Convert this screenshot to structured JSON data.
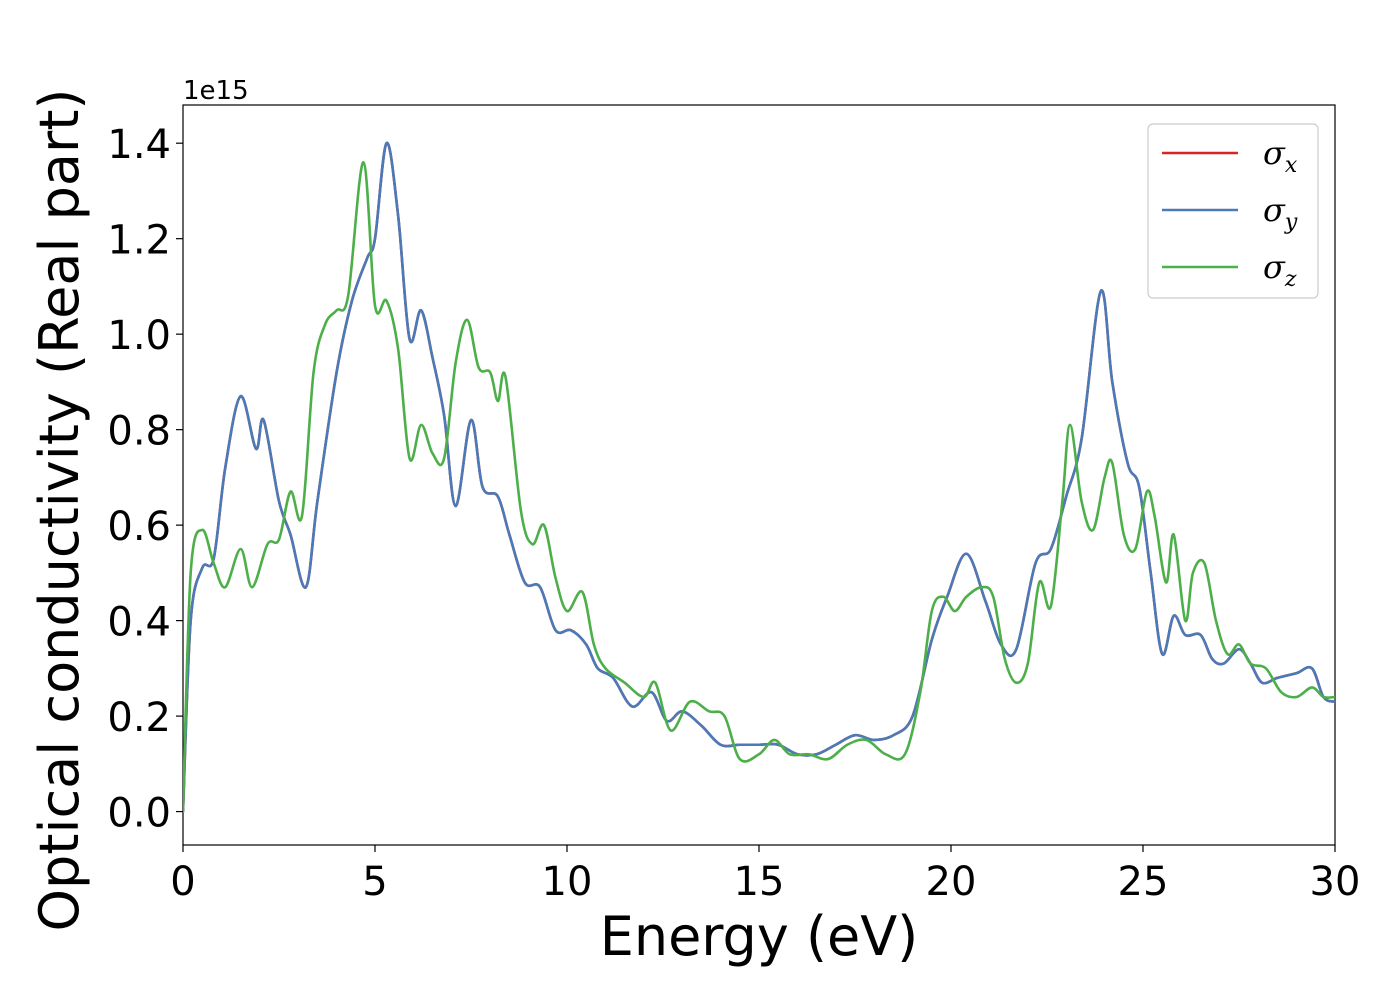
{
  "chart_data": {
    "type": "line",
    "xlabel": "Energy (eV)",
    "ylabel": "Optical conductivity (Real part)",
    "y_offset_text": "1e15",
    "xlim": [
      0,
      30
    ],
    "ylim": [
      -0.07,
      1.48
    ],
    "y_scale_factor": 1000000000000000.0,
    "x_ticks": [
      0,
      5,
      10,
      15,
      20,
      25,
      30
    ],
    "x_tick_labels": [
      "0",
      "5",
      "10",
      "15",
      "20",
      "25",
      "30"
    ],
    "y_ticks": [
      0.0,
      0.2,
      0.4,
      0.6,
      0.8,
      1.0,
      1.2,
      1.4
    ],
    "y_tick_labels": [
      "0.0",
      "0.2",
      "0.4",
      "0.6",
      "0.8",
      "1.0",
      "1.2",
      "1.4"
    ],
    "grid": false,
    "legend_position": "top-right",
    "series": [
      {
        "name": "σx",
        "symbol": "σ",
        "subscript": "x",
        "color": "#d62728",
        "x": [
          0,
          0.2,
          0.5,
          0.8,
          1.1,
          1.5,
          1.9,
          2.1,
          2.5,
          2.8,
          3.2,
          3.5,
          4.0,
          4.4,
          4.8,
          5.0,
          5.3,
          5.6,
          5.9,
          6.2,
          6.5,
          6.8,
          7.1,
          7.5,
          7.8,
          8.2,
          8.5,
          8.9,
          9.3,
          9.7,
          10.1,
          10.5,
          10.8,
          11.2,
          11.7,
          12.2,
          12.6,
          13.0,
          13.5,
          14.0,
          14.5,
          15.0,
          15.5,
          16.0,
          16.5,
          17.0,
          17.5,
          18.0,
          18.5,
          19.0,
          19.5,
          19.9,
          20.4,
          20.9,
          21.3,
          21.7,
          22.2,
          22.6,
          23.0,
          23.4,
          23.9,
          24.2,
          24.6,
          24.9,
          25.2,
          25.5,
          25.8,
          26.1,
          26.5,
          26.8,
          27.1,
          27.5,
          27.8,
          28.1,
          28.5,
          29.0,
          29.4,
          29.7,
          30.0
        ],
        "y": [
          0.0,
          0.4,
          0.51,
          0.53,
          0.72,
          0.87,
          0.76,
          0.82,
          0.65,
          0.58,
          0.47,
          0.65,
          0.92,
          1.07,
          1.16,
          1.2,
          1.4,
          1.25,
          0.99,
          1.05,
          0.95,
          0.83,
          0.64,
          0.82,
          0.68,
          0.66,
          0.58,
          0.48,
          0.47,
          0.38,
          0.38,
          0.35,
          0.3,
          0.28,
          0.22,
          0.25,
          0.19,
          0.21,
          0.18,
          0.14,
          0.14,
          0.14,
          0.14,
          0.12,
          0.12,
          0.14,
          0.16,
          0.15,
          0.16,
          0.2,
          0.36,
          0.45,
          0.54,
          0.44,
          0.35,
          0.34,
          0.52,
          0.55,
          0.66,
          0.78,
          1.09,
          0.9,
          0.73,
          0.68,
          0.5,
          0.33,
          0.41,
          0.37,
          0.37,
          0.32,
          0.31,
          0.34,
          0.31,
          0.27,
          0.28,
          0.29,
          0.3,
          0.24,
          0.23
        ]
      },
      {
        "name": "σy",
        "symbol": "σ",
        "subscript": "y",
        "color": "#4a7ab8",
        "x": [
          0,
          0.2,
          0.5,
          0.8,
          1.1,
          1.5,
          1.9,
          2.1,
          2.5,
          2.8,
          3.2,
          3.5,
          4.0,
          4.4,
          4.8,
          5.0,
          5.3,
          5.6,
          5.9,
          6.2,
          6.5,
          6.8,
          7.1,
          7.5,
          7.8,
          8.2,
          8.5,
          8.9,
          9.3,
          9.7,
          10.1,
          10.5,
          10.8,
          11.2,
          11.7,
          12.2,
          12.6,
          13.0,
          13.5,
          14.0,
          14.5,
          15.0,
          15.5,
          16.0,
          16.5,
          17.0,
          17.5,
          18.0,
          18.5,
          19.0,
          19.5,
          19.9,
          20.4,
          20.9,
          21.3,
          21.7,
          22.2,
          22.6,
          23.0,
          23.4,
          23.9,
          24.2,
          24.6,
          24.9,
          25.2,
          25.5,
          25.8,
          26.1,
          26.5,
          26.8,
          27.1,
          27.5,
          27.8,
          28.1,
          28.5,
          29.0,
          29.4,
          29.7,
          30.0
        ],
        "y": [
          0.0,
          0.4,
          0.51,
          0.53,
          0.72,
          0.87,
          0.76,
          0.82,
          0.65,
          0.58,
          0.47,
          0.65,
          0.92,
          1.07,
          1.16,
          1.2,
          1.4,
          1.25,
          0.99,
          1.05,
          0.95,
          0.83,
          0.64,
          0.82,
          0.68,
          0.66,
          0.58,
          0.48,
          0.47,
          0.38,
          0.38,
          0.35,
          0.3,
          0.28,
          0.22,
          0.25,
          0.19,
          0.21,
          0.18,
          0.14,
          0.14,
          0.14,
          0.14,
          0.12,
          0.12,
          0.14,
          0.16,
          0.15,
          0.16,
          0.2,
          0.36,
          0.45,
          0.54,
          0.44,
          0.35,
          0.34,
          0.52,
          0.55,
          0.66,
          0.78,
          1.09,
          0.9,
          0.73,
          0.68,
          0.5,
          0.33,
          0.41,
          0.37,
          0.37,
          0.32,
          0.31,
          0.34,
          0.31,
          0.27,
          0.28,
          0.29,
          0.3,
          0.24,
          0.23
        ]
      },
      {
        "name": "σz",
        "symbol": "σ",
        "subscript": "z",
        "color": "#4daf4a",
        "x": [
          0,
          0.2,
          0.5,
          0.8,
          1.1,
          1.5,
          1.8,
          2.2,
          2.5,
          2.8,
          3.1,
          3.4,
          3.7,
          4.0,
          4.3,
          4.7,
          5.0,
          5.3,
          5.6,
          5.9,
          6.2,
          6.5,
          6.8,
          7.1,
          7.4,
          7.7,
          8.0,
          8.2,
          8.4,
          8.8,
          9.1,
          9.4,
          9.7,
          10.0,
          10.4,
          10.7,
          11.0,
          11.5,
          12.0,
          12.3,
          12.7,
          13.2,
          13.7,
          14.1,
          14.5,
          15.0,
          15.4,
          15.8,
          16.3,
          16.8,
          17.3,
          17.8,
          18.3,
          18.8,
          19.2,
          19.5,
          19.8,
          20.1,
          20.4,
          20.8,
          21.1,
          21.4,
          21.7,
          22.0,
          22.3,
          22.6,
          22.9,
          23.1,
          23.4,
          23.7,
          24.0,
          24.2,
          24.5,
          24.8,
          25.1,
          25.3,
          25.6,
          25.8,
          26.1,
          26.3,
          26.6,
          26.9,
          27.2,
          27.5,
          27.8,
          28.2,
          28.6,
          29.0,
          29.4,
          29.7,
          30.0
        ],
        "y": [
          0.0,
          0.5,
          0.59,
          0.52,
          0.47,
          0.55,
          0.47,
          0.56,
          0.57,
          0.67,
          0.62,
          0.92,
          1.02,
          1.05,
          1.08,
          1.36,
          1.06,
          1.07,
          0.97,
          0.74,
          0.81,
          0.75,
          0.74,
          0.94,
          1.03,
          0.93,
          0.92,
          0.86,
          0.91,
          0.63,
          0.56,
          0.6,
          0.49,
          0.42,
          0.46,
          0.35,
          0.3,
          0.27,
          0.24,
          0.27,
          0.17,
          0.23,
          0.21,
          0.2,
          0.11,
          0.12,
          0.15,
          0.12,
          0.12,
          0.11,
          0.14,
          0.15,
          0.12,
          0.12,
          0.25,
          0.42,
          0.45,
          0.42,
          0.45,
          0.47,
          0.45,
          0.32,
          0.27,
          0.31,
          0.48,
          0.43,
          0.65,
          0.81,
          0.65,
          0.59,
          0.7,
          0.73,
          0.58,
          0.55,
          0.67,
          0.62,
          0.48,
          0.58,
          0.4,
          0.5,
          0.52,
          0.4,
          0.33,
          0.35,
          0.31,
          0.3,
          0.25,
          0.24,
          0.26,
          0.24,
          0.24
        ]
      }
    ]
  }
}
